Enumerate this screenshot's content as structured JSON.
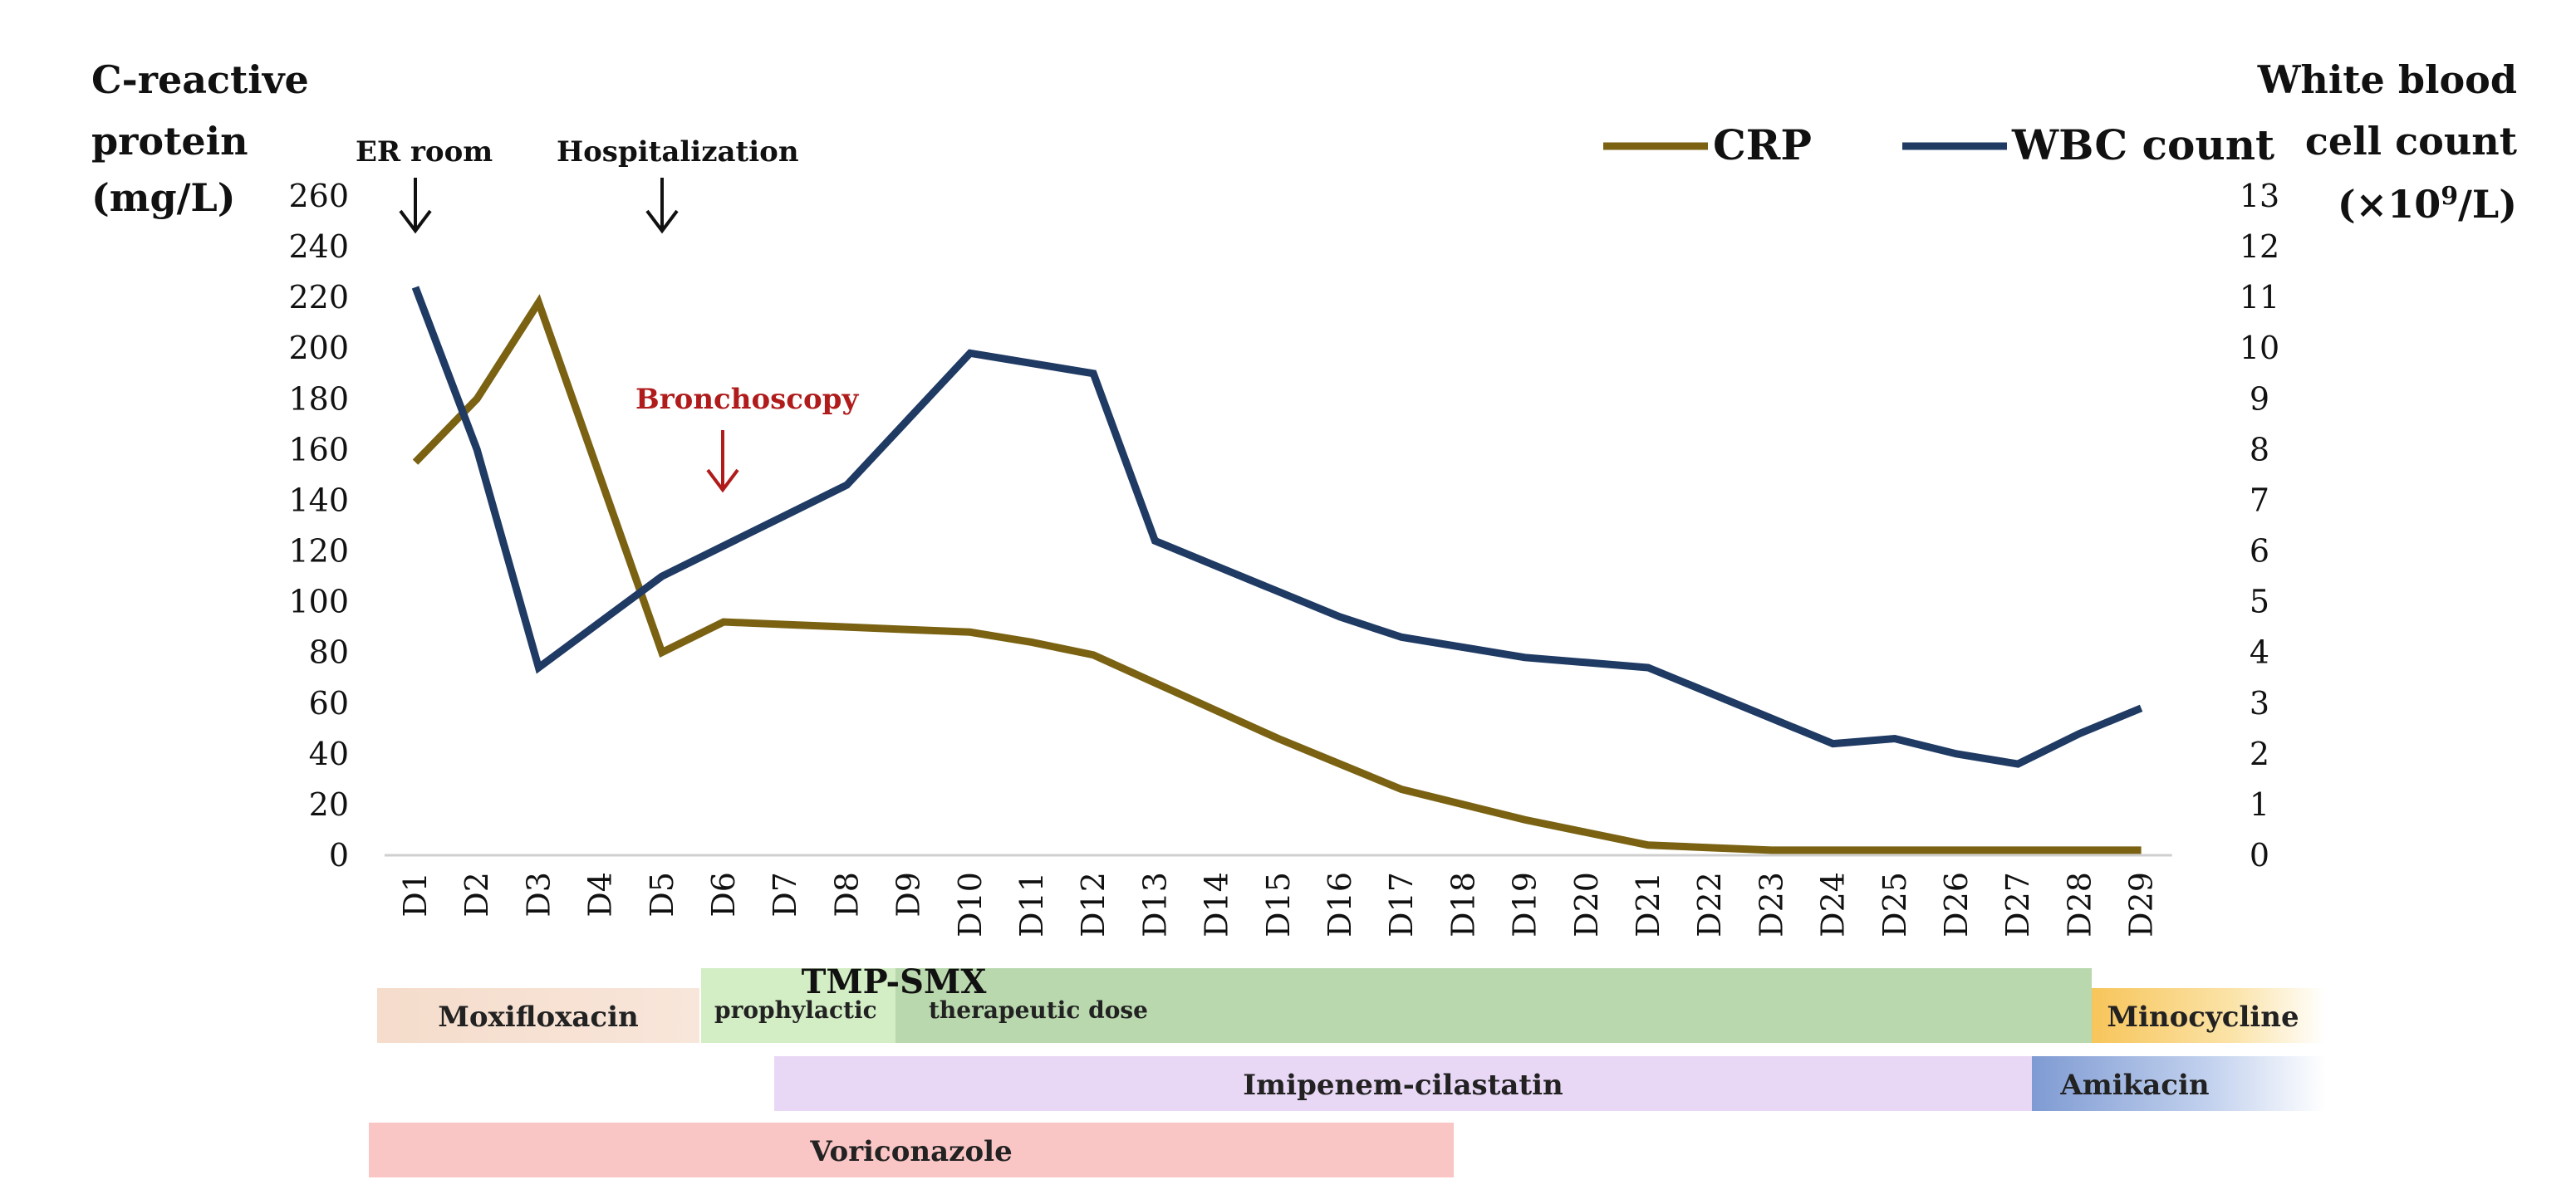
{
  "chart_data": {
    "type": "line",
    "categories": [
      "D1",
      "D2",
      "D3",
      "D4",
      "D5",
      "D6",
      "D7",
      "D8",
      "D9",
      "D10",
      "D11",
      "D12",
      "D13",
      "D14",
      "D15",
      "D16",
      "D17",
      "D18",
      "D19",
      "D20",
      "D21",
      "D22",
      "D23",
      "D24",
      "D25",
      "D26",
      "D27",
      "D28",
      "D29"
    ],
    "left_axis": {
      "title_lines": [
        "C-reactive",
        "protein",
        "(mg/L)"
      ],
      "ylim": [
        0,
        260
      ],
      "ticks": [
        0,
        20,
        40,
        60,
        80,
        100,
        120,
        140,
        160,
        180,
        200,
        220,
        240,
        260
      ]
    },
    "right_axis": {
      "title_lines": [
        "White blood",
        "cell count"
      ],
      "title_unit": {
        "prefix": "(×10",
        "sup": "9",
        "suffix": "/L)"
      },
      "ylim": [
        0,
        13
      ],
      "ticks": [
        0,
        1,
        2,
        3,
        4,
        5,
        6,
        7,
        8,
        9,
        10,
        11,
        12,
        13
      ]
    },
    "series": [
      {
        "name": "CRP",
        "axis": "left",
        "color": "#7a6212",
        "values": [
          155,
          180,
          218,
          null,
          80,
          92,
          91,
          90,
          89,
          88,
          84,
          79,
          68,
          57,
          46,
          36,
          26,
          20,
          14,
          9,
          4,
          3,
          2,
          2,
          2,
          2,
          2,
          2,
          2
        ]
      },
      {
        "name": "WBC count",
        "axis": "right",
        "color": "#1f3a63",
        "values": [
          11.2,
          8.0,
          3.7,
          4.6,
          5.5,
          6.1,
          6.7,
          7.3,
          8.6,
          9.9,
          9.7,
          9.5,
          6.2,
          5.7,
          5.2,
          4.7,
          4.3,
          4.1,
          3.9,
          3.8,
          3.7,
          3.2,
          2.7,
          2.2,
          2.3,
          2.0,
          1.8,
          2.4,
          2.9
        ]
      }
    ],
    "legend": {
      "position": "top-right",
      "entries": [
        "CRP",
        "WBC count"
      ]
    },
    "annotations": [
      {
        "label": "ER room",
        "day": "D1",
        "color": "#111111"
      },
      {
        "label": "Hospitalization",
        "day": "D5",
        "color": "#111111"
      },
      {
        "label": "Bronchoscopy",
        "day": "D6",
        "color": "#b01c1c"
      }
    ],
    "treatments": [
      {
        "label": "Moxifloxacin",
        "start": "D1",
        "end": "D5",
        "color": "#f6dccb",
        "row": 1
      },
      {
        "label": "TMP-SMX",
        "start": "D6",
        "end": "D27",
        "color": "#b9d8ad",
        "row": 1,
        "phases": [
          {
            "label": "prophylactic",
            "start": "D6",
            "end": "D8",
            "color": "#d3edc5"
          },
          {
            "label": "therapeutic dose",
            "start": "D9",
            "end": "D27",
            "color": "#b9d8ad"
          }
        ]
      },
      {
        "label": "Minocycline",
        "start": "D28",
        "end": "D29",
        "color": "#f9d27a",
        "row": 1
      },
      {
        "label": "Imipenem-cilastatin",
        "start": "D7",
        "end": "D26",
        "color": "#e8d8f5",
        "row": 2
      },
      {
        "label": "Amikacin",
        "start": "D27",
        "end": "D29",
        "color": "#8eaadb",
        "row": 2
      },
      {
        "label": "Voriconazole",
        "start": "D1",
        "end": "D17",
        "color": "#f9c5c5",
        "row": 3
      }
    ]
  }
}
